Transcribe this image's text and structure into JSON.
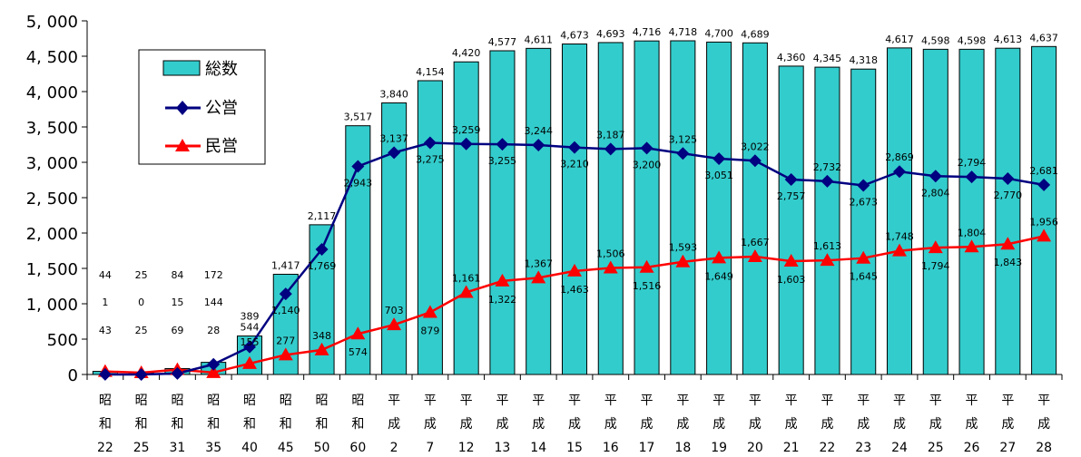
{
  "chart_data": {
    "type": "bar",
    "categories": [
      [
        "昭",
        "和",
        "22"
      ],
      [
        "昭",
        "和",
        "25"
      ],
      [
        "昭",
        "和",
        "31"
      ],
      [
        "昭",
        "和",
        "35"
      ],
      [
        "昭",
        "和",
        "40"
      ],
      [
        "昭",
        "和",
        "45"
      ],
      [
        "昭",
        "和",
        "50"
      ],
      [
        "昭",
        "和",
        "60"
      ],
      [
        "平",
        "成",
        "2"
      ],
      [
        "平",
        "成",
        "7"
      ],
      [
        "平",
        "成",
        "12"
      ],
      [
        "平",
        "成",
        "13"
      ],
      [
        "平",
        "成",
        "14"
      ],
      [
        "平",
        "成",
        "15"
      ],
      [
        "平",
        "成",
        "16"
      ],
      [
        "平",
        "成",
        "17"
      ],
      [
        "平",
        "成",
        "18"
      ],
      [
        "平",
        "成",
        "19"
      ],
      [
        "平",
        "成",
        "20"
      ],
      [
        "平",
        "成",
        "21"
      ],
      [
        "平",
        "成",
        "22"
      ],
      [
        "平",
        "成",
        "23"
      ],
      [
        "平",
        "成",
        "24"
      ],
      [
        "平",
        "成",
        "25"
      ],
      [
        "平",
        "成",
        "26"
      ],
      [
        "平",
        "成",
        "27"
      ],
      [
        "平",
        "成",
        "28"
      ]
    ],
    "series": [
      {
        "name": "総数",
        "kind": "bar",
        "color": "#33CCCC",
        "values": [
          44,
          25,
          84,
          172,
          544,
          1417,
          2117,
          3517,
          3840,
          4154,
          4420,
          4577,
          4611,
          4673,
          4693,
          4716,
          4718,
          4700,
          4689,
          4360,
          4345,
          4318,
          4617,
          4598,
          4598,
          4613,
          4637
        ],
        "labels": [
          "44",
          "25",
          "84",
          "172",
          "544",
          "1,417",
          "2,117",
          "3,517",
          "3,840",
          "4,154",
          "4,420",
          "4,577",
          "4,611",
          "4,673",
          "4,693",
          "4,716",
          "4,718",
          "4,700",
          "4,689",
          "4,360",
          "4,345",
          "4,318",
          "4,617",
          "4,598",
          "4,598",
          "4,613",
          "4,637"
        ]
      },
      {
        "name": "公営",
        "kind": "line",
        "marker": "diamond",
        "color": "#000080",
        "values": [
          1,
          0,
          15,
          144,
          389,
          1140,
          1769,
          2943,
          3137,
          3275,
          3259,
          3255,
          3244,
          3210,
          3187,
          3200,
          3125,
          3051,
          3022,
          2757,
          2732,
          2673,
          2869,
          2804,
          2794,
          2770,
          2681
        ],
        "labels": [
          "1",
          "0",
          "15",
          "144",
          "389",
          "1,140",
          "1,769",
          "2,943",
          "3,137",
          "3,275",
          "3,259",
          "3,255",
          "3,244",
          "3,210",
          "3,187",
          "3,200",
          "3,125",
          "3,051",
          "3,022",
          "2,757",
          "2,732",
          "2,673",
          "2,869",
          "2,804",
          "2,794",
          "2,770",
          "2,681"
        ]
      },
      {
        "name": "民営",
        "kind": "line",
        "marker": "triangle",
        "color": "#FF0000",
        "values": [
          43,
          25,
          69,
          28,
          155,
          277,
          348,
          574,
          703,
          879,
          1161,
          1322,
          1367,
          1463,
          1506,
          1516,
          1593,
          1649,
          1667,
          1603,
          1613,
          1645,
          1748,
          1794,
          1804,
          1843,
          1956
        ],
        "labels": [
          "43",
          "25",
          "69",
          "28",
          "155",
          "277",
          "348",
          "574",
          "703",
          "879",
          "1,161",
          "1,322",
          "1,367",
          "1,463",
          "1,506",
          "1,516",
          "1,593",
          "1,649",
          "1,667",
          "1,603",
          "1,613",
          "1,645",
          "1,748",
          "1,794",
          "1,804",
          "1,843",
          "1,956"
        ]
      }
    ],
    "ylim": [
      0,
      5000
    ],
    "yticks": [
      0,
      500,
      1000,
      1500,
      2000,
      2500,
      3000,
      3500,
      4000,
      4500,
      5000
    ],
    "ytick_labels": [
      "0",
      "500",
      "1, 000",
      "1, 500",
      "2, 000",
      "2, 500",
      "3, 000",
      "3, 500",
      "4, 000",
      "4, 500",
      "5, 000"
    ],
    "legend": {
      "position": "top-left",
      "entries": [
        "総数",
        "公営",
        "民営"
      ]
    },
    "grid": false
  }
}
